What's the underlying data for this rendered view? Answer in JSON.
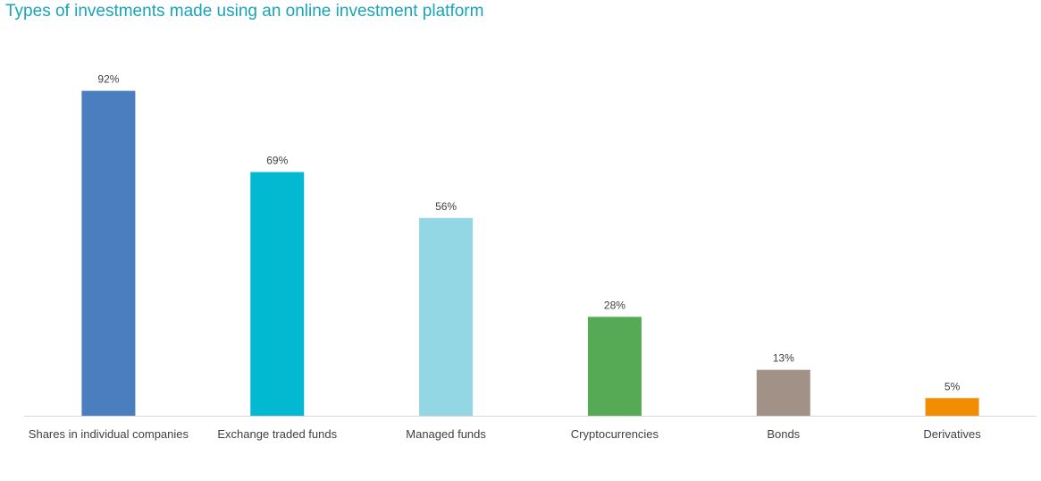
{
  "chart_data": {
    "type": "bar",
    "title": "Types of investments made using an online investment platform",
    "xlabel": "",
    "ylabel": "",
    "ylim": [
      0,
      100
    ],
    "grid": false,
    "legend": "none",
    "categories": [
      "Shares in individual companies",
      "Exchange traded funds",
      "Managed funds",
      "Cryptocurrencies",
      "Bonds",
      "Derivatives"
    ],
    "values": [
      92,
      69,
      56,
      28,
      13,
      5
    ],
    "value_labels": [
      "92%",
      "69%",
      "56%",
      "28%",
      "13%",
      "5%"
    ],
    "colors": [
      "#4a7ebf",
      "#03b9d2",
      "#93d6e4",
      "#56aa56",
      "#a29187",
      "#f28c00"
    ]
  }
}
